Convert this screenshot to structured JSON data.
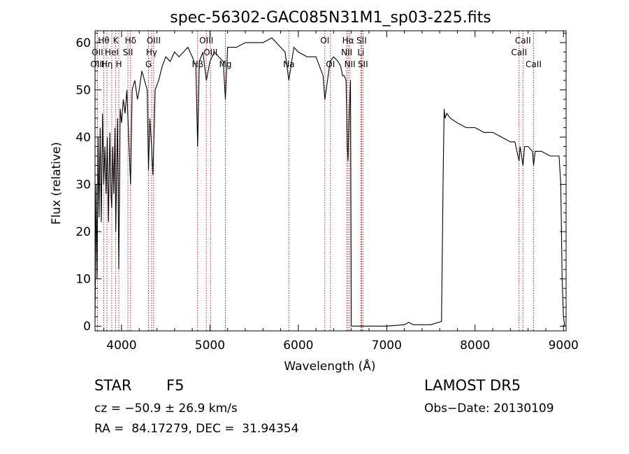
{
  "chart_data": {
    "type": "line",
    "title": "spec-56302-GAC085N31M1_sp03-225.fits",
    "xlabel": "Wavelength (Å)",
    "ylabel": "Flux (relative)",
    "xlim": [
      3700,
      9030
    ],
    "ylim": [
      -1,
      62.5
    ],
    "xticks": [
      4000,
      5000,
      6000,
      7000,
      8000,
      9000
    ],
    "yticks": [
      0,
      10,
      20,
      30,
      40,
      50,
      60
    ],
    "line_color": "#000000",
    "marker_color": "#b22222",
    "spectral_lines": [
      {
        "label": "Hθ",
        "wavelength": 3798,
        "row": 1
      },
      {
        "label": "OII",
        "wavelength": 3727,
        "row": 2
      },
      {
        "label": "OIII",
        "wavelength": 3727,
        "row": 3
      },
      {
        "label": "K",
        "wavelength": 3934,
        "row": 1
      },
      {
        "label": "HeI",
        "wavelength": 3889,
        "row": 2
      },
      {
        "label": "Hη",
        "wavelength": 3835,
        "row": 3
      },
      {
        "label": "Hδ",
        "wavelength": 4102,
        "row": 1
      },
      {
        "label": "SII",
        "wavelength": 4072,
        "row": 2
      },
      {
        "label": "H",
        "wavelength": 3969,
        "row": 3
      },
      {
        "label": "OIII",
        "wavelength": 4363,
        "row": 1
      },
      {
        "label": "Hγ",
        "wavelength": 4340,
        "row": 2
      },
      {
        "label": "G",
        "wavelength": 4305,
        "row": 3
      },
      {
        "label": "OIII",
        "wavelength": 4959,
        "row": 1
      },
      {
        "label": "Hβ",
        "wavelength": 4861,
        "row": 3
      },
      {
        "label": "OIII",
        "wavelength": 5007,
        "row": 2
      },
      {
        "label": "Mg",
        "wavelength": 5175,
        "row": 3
      },
      {
        "label": "Na",
        "wavelength": 5893,
        "row": 3
      },
      {
        "label": "OI",
        "wavelength": 6300,
        "row": 1
      },
      {
        "label": "OI",
        "wavelength": 6363,
        "row": 3
      },
      {
        "label": "Hα",
        "wavelength": 6563,
        "row": 1
      },
      {
        "label": "NII",
        "wavelength": 6548,
        "row": 2
      },
      {
        "label": "NII",
        "wavelength": 6584,
        "row": 3
      },
      {
        "label": "SII",
        "wavelength": 6716,
        "row": 1
      },
      {
        "label": "Li",
        "wavelength": 6708,
        "row": 2
      },
      {
        "label": "SII",
        "wavelength": 6731,
        "row": 3
      },
      {
        "label": "CaII",
        "wavelength": 8542,
        "row": 1
      },
      {
        "label": "CaII",
        "wavelength": 8498,
        "row": 2
      },
      {
        "label": "CaII",
        "wavelength": 8662,
        "row": 3
      }
    ],
    "series": [
      {
        "x": [
          3700,
          3712,
          3722,
          3735,
          3745,
          3758,
          3770,
          3785,
          3798,
          3812,
          3825,
          3838,
          3852,
          3868,
          3880,
          3889,
          3900,
          3912,
          3925,
          3934,
          3942,
          3955,
          3969,
          3985,
          4000,
          4020,
          4040,
          4060,
          4080,
          4102,
          4120,
          4150,
          4180,
          4200,
          4230,
          4260,
          4290,
          4305,
          4320,
          4340,
          4355,
          4380,
          4420,
          4460,
          4500,
          4550,
          4600,
          4650,
          4700,
          4750,
          4800,
          4840,
          4861,
          4880,
          4920,
          4960,
          5000,
          5050,
          5100,
          5150,
          5175,
          5200,
          5300,
          5400,
          5500,
          5600,
          5700,
          5800,
          5850,
          5893,
          5950,
          6000,
          6100,
          6200,
          6280,
          6300,
          6360,
          6400,
          6450,
          6480,
          6500,
          6520,
          6540,
          6555,
          6563,
          6575,
          6590,
          6600,
          6620,
          6640,
          6700,
          7000,
          7200,
          7250,
          7300,
          7350,
          7500,
          7620,
          7640,
          7650,
          7660,
          7680,
          7720,
          7800,
          7900,
          8000,
          8100,
          8200,
          8300,
          8400,
          8450,
          8498,
          8510,
          8542,
          8560,
          8600,
          8650,
          8662,
          8680,
          8750,
          8850,
          8900,
          8950,
          8970,
          8985,
          9000,
          9015
        ],
        "y": [
          2,
          30,
          10,
          40,
          23,
          42,
          22,
          45,
          30,
          38,
          28,
          40,
          22,
          41,
          28,
          25,
          38,
          28,
          42,
          20,
          30,
          44,
          12,
          46,
          43,
          48,
          45,
          50,
          40,
          30,
          50,
          52,
          48,
          50,
          54,
          52,
          50,
          33,
          44,
          38,
          32,
          50,
          52,
          55,
          57,
          56,
          58,
          57,
          58,
          59,
          57,
          55,
          38,
          56,
          58,
          52,
          56,
          58,
          57,
          56,
          48,
          59,
          59,
          60,
          60,
          60,
          61,
          59,
          58,
          52,
          59,
          58,
          57,
          57,
          53,
          48,
          56,
          57,
          56,
          55,
          53,
          53,
          52,
          38,
          35,
          45,
          52,
          0,
          0,
          0,
          0,
          0,
          0.3,
          0.8,
          0.3,
          0.3,
          0.3,
          1,
          33,
          46,
          44,
          45,
          44,
          43,
          42,
          42,
          41,
          41,
          40,
          39,
          39,
          35,
          38,
          34,
          38,
          38,
          37,
          34,
          37,
          37,
          36,
          36,
          36,
          30,
          10,
          2,
          0
        ]
      }
    ],
    "annotations": {
      "object_type": "STAR",
      "subclass": "F5",
      "survey": "LAMOST DR5",
      "cz_text": "cz = −50.9 ± 26.9 km/s",
      "obs_date": "Obs−Date: 20130109",
      "radec": "RA =  84.17279, DEC =  31.94354"
    }
  }
}
